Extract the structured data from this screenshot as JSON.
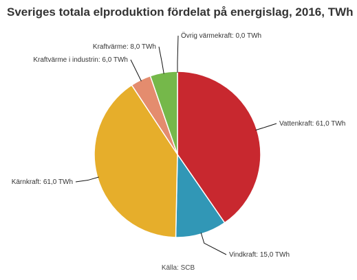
{
  "chart_data": {
    "type": "pie",
    "title": "Sveriges totala elproduktion fördelat på energislag, 2016, TWh",
    "unit": "TWh",
    "slices": [
      {
        "label": "Vattenkraft: 61,0 TWh",
        "value": 61.0,
        "color": "#c8282f"
      },
      {
        "label": "Vindkraft: 15,0 TWh",
        "value": 15.0,
        "color": "#3197b6"
      },
      {
        "label": "Kärnkraft: 61,0 TWh",
        "value": 61.0,
        "color": "#e6ae2b"
      },
      {
        "label": "Kraftvärme i industrin: 6,0 TWh",
        "value": 6.0,
        "color": "#e48c6e"
      },
      {
        "label": "Kraftvärme: 8,0 TWh",
        "value": 8.0,
        "color": "#75b84a"
      },
      {
        "label": "Övrig värmekraft: 0,0 TWh",
        "value": 0.0,
        "color": "#555555"
      }
    ],
    "source": "Källa: SCB"
  }
}
